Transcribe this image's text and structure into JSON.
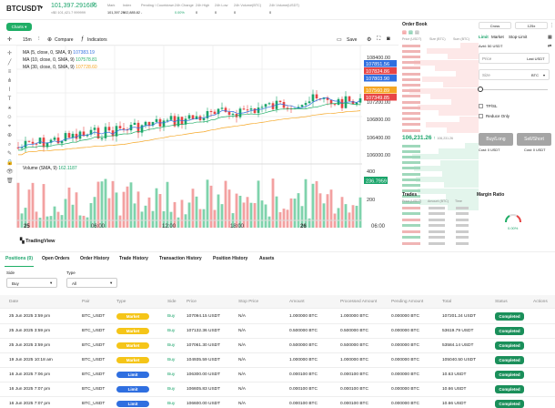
{
  "header": {
    "symbol": "BTCUSDT",
    "price": "101,397.291686",
    "price_icon": "?",
    "sub_price": "≈$0 101,421.7 999999",
    "stats": [
      {
        "label": "Mark",
        "value": "101,397.29"
      },
      {
        "label": "Index",
        "value": "102,885.82"
      },
      {
        "label": "Pending / Countdown",
        "value": "-"
      },
      {
        "label": "24h Change",
        "value": "0.00%"
      },
      {
        "label": "24h High",
        "value": "0"
      },
      {
        "label": "24h Low",
        "value": "0"
      },
      {
        "label": "24h Volume(BTC)",
        "value": "0"
      },
      {
        "label": "24h Volume(USDT)",
        "value": "0"
      }
    ],
    "charts_btn": "Charts"
  },
  "toolbar": {
    "interval": "15m",
    "compare": "Compare",
    "indicators": "Indicators",
    "save": "Save"
  },
  "chart": {
    "indicators": [
      {
        "label": "MA (5, close, 0, SMA, 9)",
        "value": "107383.19",
        "color": "#2f6fe0"
      },
      {
        "label": "MA (10, close, 0, SMA, 9)",
        "value": "107578.81",
        "color": "#1fae66"
      },
      {
        "label": "MA (30, close, 0, SMA, 9)",
        "value": "107728.60",
        "color": "#f5a623"
      }
    ],
    "volume_label": "Volume (SMA, 9)",
    "volume_value": "162.1187",
    "price_ticks": [
      "108400.00",
      "107200.00",
      "106800.00",
      "106400.00",
      "106000.00"
    ],
    "price_tags": [
      {
        "text": "107851.56",
        "color": "#2f6fe0"
      },
      {
        "text": "107824.86",
        "color": "#e84545"
      },
      {
        "text": "107803.90",
        "color": "#2f6fe0"
      },
      {
        "text": "107560.89",
        "color": "#f5a623"
      },
      {
        "text": "107349.85",
        "color": "#e84545"
      }
    ],
    "vol_ticks": [
      "400",
      "200"
    ],
    "vol_tag": "236.7959",
    "time_ticks": [
      "25",
      "06:00",
      "12:00",
      "18:00",
      "26",
      "06:00"
    ],
    "tradingview": "TradingView"
  },
  "orderbook": {
    "title": "Order Book",
    "cols": [
      "Price (USDT)",
      "Size (BTC)",
      "Sum (BTC)"
    ],
    "last_price": "106,231.26",
    "last_icon": "↑",
    "last_sub": "106,231.26"
  },
  "trades": {
    "title": "Trades",
    "cols": [
      "Price (USDT)",
      "Amount (BTC)",
      "Time"
    ]
  },
  "margin": {
    "title": "Margin Ratio",
    "ratio": "0.00%"
  },
  "order_form": {
    "mode_cross": "Cross",
    "leverage": "125x",
    "tabs": [
      "Limit",
      "Market",
      "Stop-Limit"
    ],
    "avbl": "Avbl: 50 USDT",
    "price_placeholder": "Price",
    "price_unit": "Last USDT",
    "size_placeholder": "Size",
    "size_unit": "BTC",
    "tpsl": "TP/SL",
    "reduce": "Reduce Only",
    "buy_btn": "Buy/Long",
    "sell_btn": "Sell/Short",
    "cost_buy": "Cost: 0 USDT",
    "cost_sell": "Cost: 0 USDT"
  },
  "bottom": {
    "tabs": [
      "Positions (0)",
      "Open Orders",
      "Order History",
      "Trade History",
      "Transaction History",
      "Position History",
      "Assets"
    ],
    "side_label": "Side",
    "side_value": "Buy",
    "type_label": "Type",
    "type_value": "All",
    "columns": [
      "Date",
      "Pair",
      "Type",
      "Side",
      "Price",
      "Stop Price",
      "Amount",
      "Processed Amount",
      "Pending Amount",
      "Total",
      "Status",
      "Actions"
    ],
    "rows": [
      [
        "25 Jun 2025 3:59 pm",
        "BTC_USDT",
        "Market",
        "Buy",
        "107094.15 USDT",
        "N/A",
        "1.000000 BTC",
        "1.000000 BTC",
        "0.000000 BTC",
        "107201.24 USDT",
        "Completed",
        ""
      ],
      [
        "25 Jun 2025 3:59 pm",
        "BTC_USDT",
        "Market",
        "Buy",
        "107132.36 USDT",
        "N/A",
        "0.500000 BTC",
        "0.500000 BTC",
        "0.000000 BTC",
        "53619.79 USDT",
        "Completed",
        ""
      ],
      [
        "25 Jun 2025 3:59 pm",
        "BTC_USDT",
        "Market",
        "Buy",
        "107061.30 USDT",
        "N/A",
        "0.500000 BTC",
        "0.500000 BTC",
        "0.000000 BTC",
        "53584.14 USDT",
        "Completed",
        ""
      ],
      [
        "19 Jun 2025 10:18 am",
        "BTC_USDT",
        "Market",
        "Buy",
        "104935.59 USDT",
        "N/A",
        "1.000000 BTC",
        "1.000000 BTC",
        "0.000000 BTC",
        "105040.50 USDT",
        "Completed",
        ""
      ],
      [
        "16 Jun 2025 7:06 pm",
        "BTC_USDT",
        "Limit",
        "Buy",
        "106300.00 USDT",
        "N/A",
        "0.000100 BTC",
        "0.000100 BTC",
        "0.000000 BTC",
        "10.63 USDT",
        "Completed",
        ""
      ],
      [
        "16 Jun 2025 7:07 pm",
        "BTC_USDT",
        "Limit",
        "Buy",
        "106605.83 USDT",
        "N/A",
        "0.000100 BTC",
        "0.000100 BTC",
        "0.000000 BTC",
        "10.66 USDT",
        "Completed",
        ""
      ],
      [
        "16 Jun 2025 7:07 pm",
        "BTC_USDT",
        "Limit",
        "Buy",
        "106600.00 USDT",
        "N/A",
        "0.000100 BTC",
        "0.000100 BTC",
        "0.000000 BTC",
        "10.66 USDT",
        "Completed",
        ""
      ]
    ]
  },
  "colors": {
    "up": "#1aa46a",
    "down": "#e84545",
    "accent": "#1fae66",
    "market": "#f5c518",
    "limit": "#2f6fe0"
  }
}
